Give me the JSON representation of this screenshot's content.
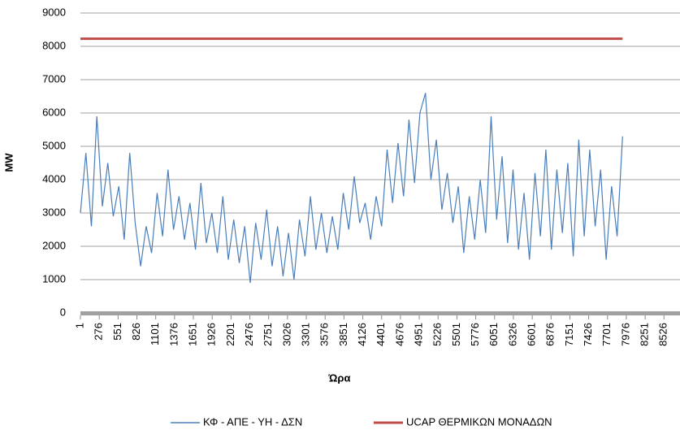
{
  "chart_data": {
    "type": "line",
    "x_label": "Ώρα",
    "y_label": "MW",
    "x": [
      1,
      81,
      161,
      241,
      321,
      401,
      481,
      561,
      641,
      721,
      801,
      881,
      961,
      1041,
      1121,
      1201,
      1281,
      1361,
      1441,
      1521,
      1601,
      1681,
      1761,
      1841,
      1921,
      2001,
      2081,
      2161,
      2241,
      2321,
      2401,
      2481,
      2561,
      2641,
      2721,
      2801,
      2881,
      2961,
      3041,
      3121,
      3201,
      3281,
      3361,
      3441,
      3521,
      3601,
      3681,
      3761,
      3841,
      3921,
      4001,
      4081,
      4161,
      4241,
      4321,
      4401,
      4481,
      4561,
      4641,
      4721,
      4801,
      4881,
      4961,
      5041,
      5121,
      5201,
      5281,
      5361,
      5441,
      5521,
      5601,
      5681,
      5761,
      5841,
      5921,
      6001,
      6081,
      6161,
      6241,
      6321,
      6401,
      6481,
      6561,
      6641,
      6721,
      6801,
      6881,
      6961,
      7041,
      7121,
      7201,
      7281,
      7361,
      7441,
      7521,
      7601,
      7681,
      7761,
      7841,
      7921
    ],
    "series": [
      {
        "name": "ΚΦ - ΑΠΕ - ΥΗ - ΔΣΝ",
        "color": "#4a7ebb",
        "values": [
          3000,
          4800,
          2600,
          5900,
          3200,
          4500,
          2900,
          3800,
          2200,
          4800,
          2700,
          1400,
          2600,
          1800,
          3600,
          2300,
          4300,
          2500,
          3500,
          2200,
          3300,
          1900,
          3900,
          2100,
          3000,
          1800,
          3500,
          1600,
          2800,
          1500,
          2600,
          900,
          2700,
          1600,
          3100,
          1400,
          2600,
          1100,
          2400,
          1000,
          2800,
          1700,
          3500,
          1900,
          3000,
          1800,
          2900,
          1900,
          3600,
          2500,
          4100,
          2700,
          3300,
          2200,
          3500,
          2600,
          4900,
          3300,
          5100,
          3500,
          5800,
          3900,
          6000,
          6600,
          4000,
          5200,
          3100,
          4200,
          2700,
          3800,
          1800,
          3500,
          2200,
          4000,
          2400,
          5900,
          2800,
          4700,
          2100,
          4300,
          1900,
          3600,
          1600,
          4200,
          2300,
          4900,
          1900,
          4300,
          2400,
          4500,
          1700,
          5200,
          2300,
          4900,
          2600,
          4300,
          1600,
          3800,
          2300,
          5300
        ]
      },
      {
        "name": "UCAP ΘΕΡΜΙΚΩΝ ΜΟΝΑΔΩΝ",
        "color": "#be4b48",
        "values": [
          8230,
          8230,
          8230,
          8230,
          8230,
          8230,
          8230,
          8230,
          8230,
          8230,
          8230,
          8230,
          8230,
          8230,
          8230,
          8230,
          8230,
          8230,
          8230,
          8230,
          8230,
          8230,
          8230,
          8230,
          8230,
          8230,
          8230,
          8230,
          8230,
          8230,
          8230,
          8230,
          8230,
          8230,
          8230,
          8230,
          8230,
          8230,
          8230,
          8230,
          8230,
          8230,
          8230,
          8230,
          8230,
          8230,
          8230,
          8230,
          8230,
          8230,
          8230,
          8230,
          8230,
          8230,
          8230,
          8230,
          8230,
          8230,
          8230,
          8230,
          8230,
          8230,
          8230,
          8230,
          8230,
          8230,
          8230,
          8230,
          8230,
          8230,
          8230,
          8230,
          8230,
          8230,
          8230,
          8230,
          8230,
          8230,
          8230,
          8230,
          8230,
          8230,
          8230,
          8230,
          8230,
          8230,
          8230,
          8230,
          8230,
          8230,
          8230,
          8230,
          8230,
          8230,
          8230,
          8230,
          8230,
          8230,
          8230,
          8230
        ]
      }
    ],
    "xlim": [
      1,
      8760
    ],
    "xticks": [
      1,
      276,
      551,
      826,
      1101,
      1376,
      1651,
      1926,
      2201,
      2476,
      2751,
      3026,
      3301,
      3576,
      3851,
      4126,
      4401,
      4676,
      4951,
      5226,
      5501,
      5776,
      6051,
      6326,
      6601,
      6876,
      7151,
      7426,
      7701,
      7976,
      8251,
      8526
    ],
    "ylim": [
      0,
      9000
    ],
    "yticks": [
      0,
      1000,
      2000,
      3000,
      4000,
      5000,
      6000,
      7000,
      8000,
      9000
    ],
    "grid": true,
    "legend": "bottom"
  }
}
